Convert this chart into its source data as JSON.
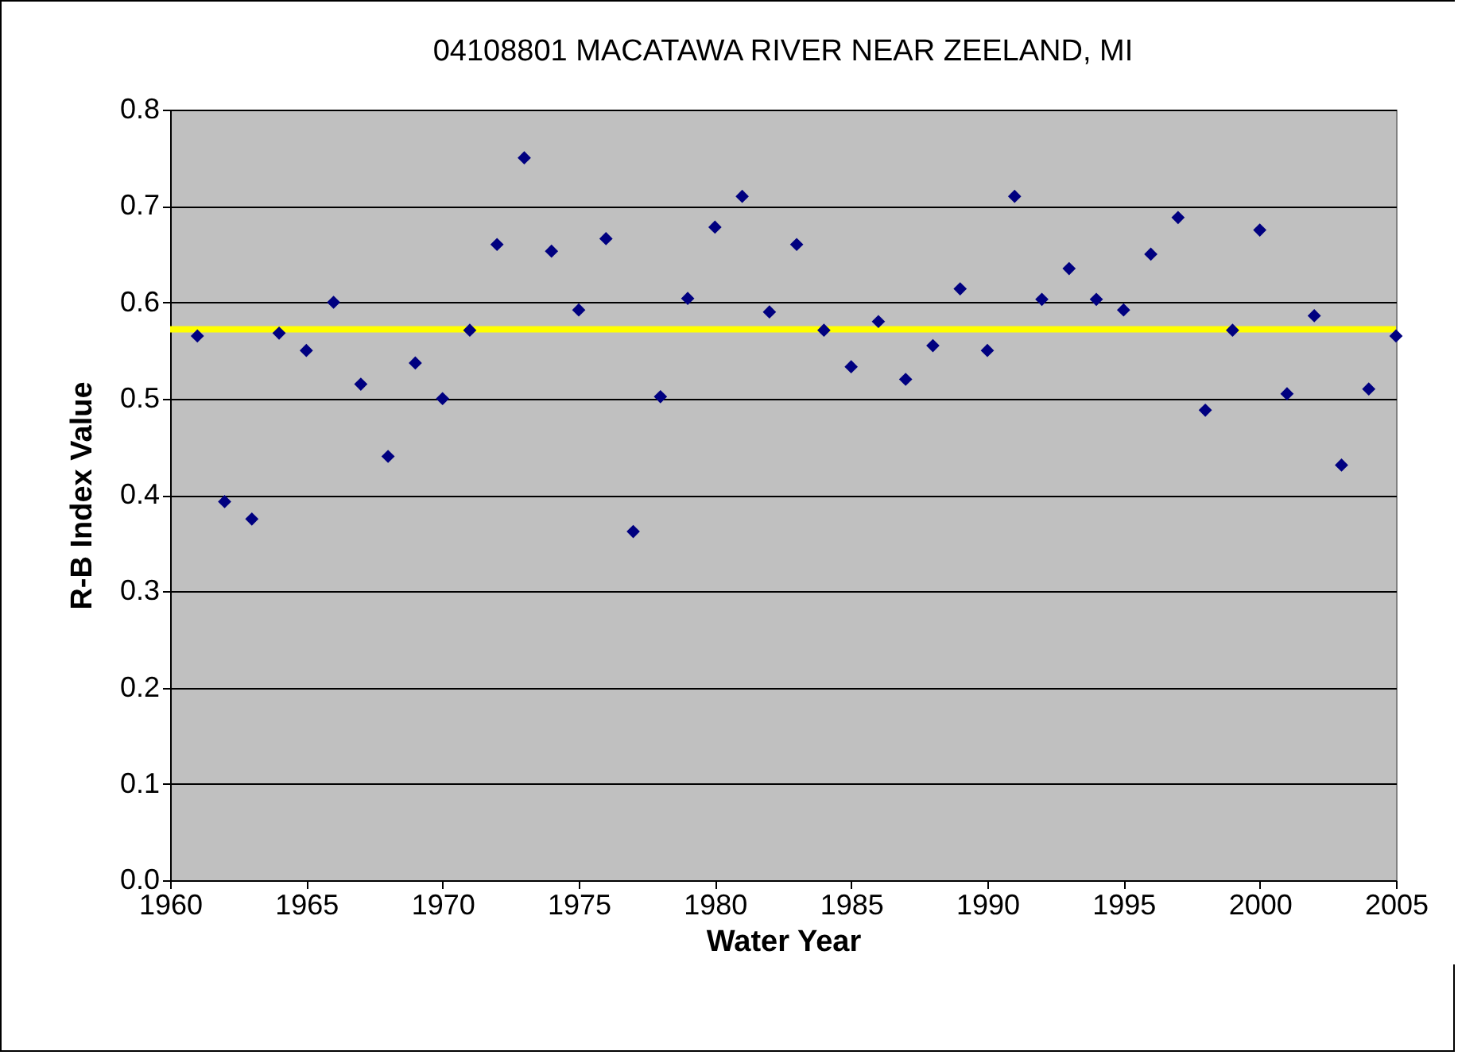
{
  "chart_data": {
    "type": "scatter",
    "title": "04108801 MACATAWA RIVER NEAR ZEELAND, MI",
    "xlabel": "Water Year",
    "ylabel": "R-B Index Value",
    "x": [
      1961,
      1962,
      1963,
      1964,
      1965,
      1966,
      1967,
      1968,
      1969,
      1970,
      1971,
      1972,
      1973,
      1974,
      1975,
      1976,
      1977,
      1978,
      1979,
      1980,
      1981,
      1982,
      1983,
      1984,
      1985,
      1986,
      1987,
      1988,
      1989,
      1990,
      1991,
      1992,
      1993,
      1994,
      1995,
      1996,
      1997,
      1998,
      1999,
      2000,
      2001,
      2002,
      2003,
      2004,
      2005
    ],
    "series": [
      {
        "color": "#000080",
        "values": [
          0.565,
          0.393,
          0.375,
          0.568,
          0.55,
          0.6,
          0.515,
          0.44,
          0.537,
          0.5,
          0.571,
          0.66,
          0.75,
          0.653,
          0.592,
          0.666,
          0.362,
          0.502,
          0.604,
          0.678,
          0.71,
          0.59,
          0.66,
          0.571,
          0.533,
          0.58,
          0.52,
          0.555,
          0.614,
          0.55,
          0.71,
          0.603,
          0.635,
          0.603,
          0.592,
          0.65,
          0.688,
          0.488,
          0.571,
          0.675,
          0.505,
          0.586,
          0.431,
          0.51,
          0.565
        ]
      }
    ],
    "xlim": [
      1960,
      2005
    ],
    "xticks": [
      1960,
      1965,
      1970,
      1975,
      1980,
      1985,
      1990,
      1995,
      2000,
      2005
    ],
    "ylim": [
      0,
      0.8
    ],
    "yticks": [
      {
        "value": 0,
        "label": "0.0"
      },
      0.1,
      0.2,
      0.3,
      0.4,
      0.5,
      0.6,
      0.7,
      0.8
    ],
    "ref_lines": [
      {
        "axis": "y",
        "value": 0.572,
        "color": "#ffff00"
      }
    ],
    "grid": "y",
    "marker": "diamond"
  }
}
